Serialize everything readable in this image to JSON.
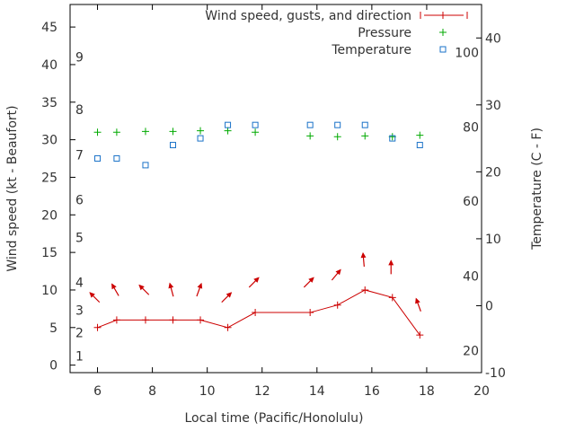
{
  "chart_data": {
    "type": "line",
    "x": [
      6,
      6.7,
      7.75,
      8.75,
      9.75,
      10.75,
      11.75,
      13.75,
      14.75,
      15.75,
      16.75,
      17.75
    ],
    "xlabel": "Local time (Pacific/Honolulu)",
    "xlim": [
      5,
      20
    ],
    "x_ticks": [
      6,
      8,
      10,
      12,
      14,
      16,
      18,
      20
    ],
    "ylabel": "Wind speed (kt - Beaufort)",
    "ylim": [
      -1,
      48
    ],
    "y_ticks": [
      0,
      5,
      10,
      15,
      20,
      25,
      30,
      35,
      40,
      45
    ],
    "y2label": "Temperature (C - F)",
    "y2lim": [
      -10,
      45
    ],
    "y2_ticks": [
      -10,
      0,
      10,
      20,
      30,
      40
    ],
    "beaufort_labels": [
      {
        "label": "1",
        "y": 1.2
      },
      {
        "label": "2",
        "y": 4.3
      },
      {
        "label": "3",
        "y": 7.3
      },
      {
        "label": "4",
        "y": 11.0
      },
      {
        "label": "5",
        "y": 17.0
      },
      {
        "label": "6",
        "y": 22.0
      },
      {
        "label": "7",
        "y": 28.0
      },
      {
        "label": "8",
        "y": 34.0
      },
      {
        "label": "9",
        "y": 41.0
      }
    ],
    "fahrenheit_labels": [
      {
        "label": "20",
        "y": -6.7
      },
      {
        "label": "40",
        "y": 4.4
      },
      {
        "label": "60",
        "y": 15.6
      },
      {
        "label": "80",
        "y": 26.7
      },
      {
        "label": "100",
        "y": 37.8
      }
    ],
    "legend_position": "top-right",
    "series": [
      {
        "name": "Wind speed, gusts, and direction",
        "color": "#cc0000",
        "marker": "plus-line",
        "values": [
          5,
          6,
          6,
          6,
          6,
          5,
          7,
          7,
          8,
          10,
          9,
          4
        ],
        "direction_arrows": [
          {
            "x": 5.9,
            "y": 9,
            "angle_deg": 135
          },
          {
            "x": 6.65,
            "y": 10,
            "angle_deg": 120
          },
          {
            "x": 7.7,
            "y": 10,
            "angle_deg": 135
          },
          {
            "x": 8.7,
            "y": 10,
            "angle_deg": 105
          },
          {
            "x": 9.7,
            "y": 10,
            "angle_deg": 70
          },
          {
            "x": 10.7,
            "y": 9,
            "angle_deg": 45
          },
          {
            "x": 11.7,
            "y": 11,
            "angle_deg": 45
          },
          {
            "x": 13.7,
            "y": 11,
            "angle_deg": 45
          },
          {
            "x": 14.7,
            "y": 12,
            "angle_deg": 50
          },
          {
            "x": 15.7,
            "y": 14,
            "angle_deg": 95
          },
          {
            "x": 16.7,
            "y": 13,
            "angle_deg": 90
          },
          {
            "x": 17.7,
            "y": 8,
            "angle_deg": 110
          }
        ]
      },
      {
        "name": "Pressure",
        "color": "#00aa00",
        "marker": "plus",
        "values": [
          31,
          31,
          31.1,
          31.1,
          31.2,
          31.2,
          31,
          30.5,
          30.4,
          30.5,
          30.4,
          30.6
        ]
      },
      {
        "name": "Temperature",
        "color": "#1a72c8",
        "marker": "square",
        "axis": "y2",
        "values": [
          22,
          22,
          21,
          24,
          25,
          27,
          27,
          27,
          27,
          27,
          25,
          24
        ]
      }
    ]
  }
}
